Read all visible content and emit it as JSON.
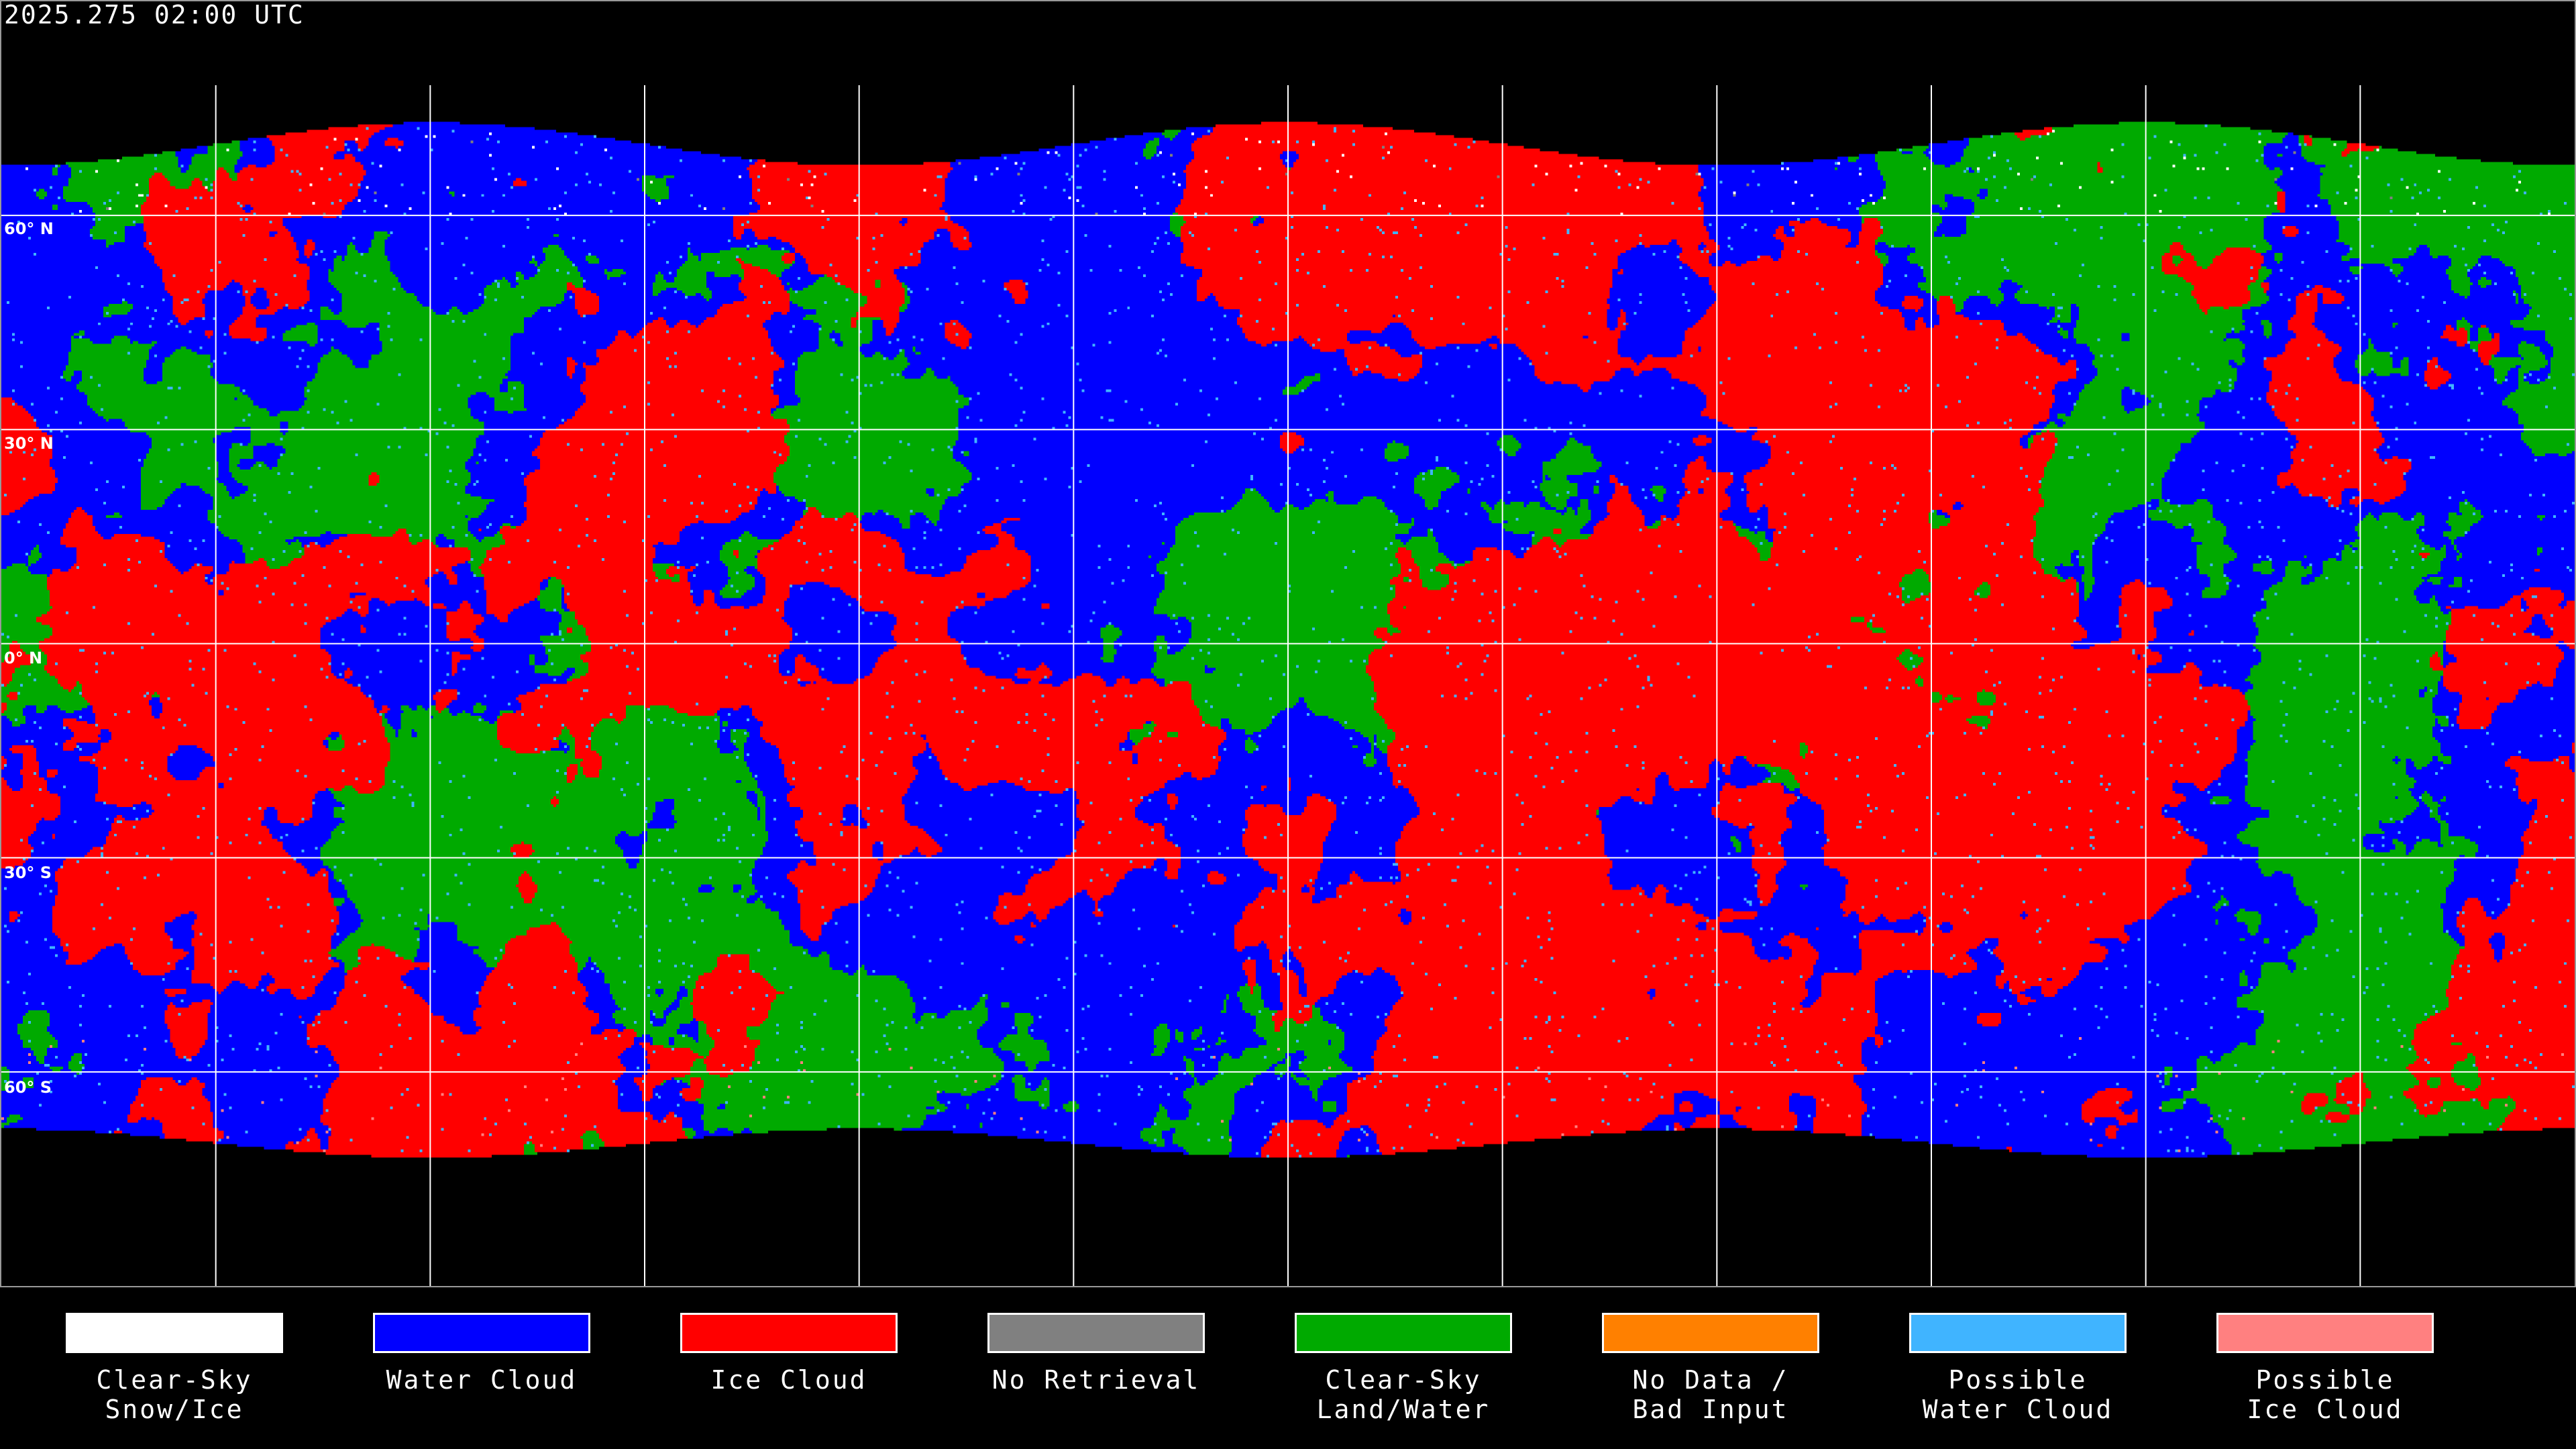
{
  "title": "2025.275 02:00 UTC",
  "lat_labels": [
    "60° N",
    "30° N",
    "0° N",
    "30° S",
    "60° S"
  ],
  "colors": {
    "clear_sky_snow_ice": "#ffffff",
    "water_cloud": "#0000ff",
    "ice_cloud": "#ff0000",
    "no_retrieval": "#808080",
    "clear_sky_land_water": "#00aa00",
    "no_data": "#ff8000",
    "possible_water_cloud": "#40b4ff",
    "possible_ice_cloud": "#ff8080",
    "background": "#000000",
    "grid": "#ffffff"
  },
  "legend": [
    {
      "label": "Clear-Sky\nSnow/Ice",
      "color": "#ffffff"
    },
    {
      "label": "Water Cloud",
      "color": "#0000ff"
    },
    {
      "label": "Ice Cloud",
      "color": "#ff0000"
    },
    {
      "label": "No Retrieval",
      "color": "#808080"
    },
    {
      "label": "Clear-Sky\nLand/Water",
      "color": "#00aa00"
    },
    {
      "label": "No Data /\nBad Input",
      "color": "#ff8000"
    },
    {
      "label": "Possible\nWater Cloud",
      "color": "#40b4ff"
    },
    {
      "label": "Possible\nIce Cloud",
      "color": "#ff8080"
    }
  ],
  "map": {
    "projection": "equirectangular",
    "graticule_spacing_deg": 30,
    "product": "cloud phase"
  }
}
